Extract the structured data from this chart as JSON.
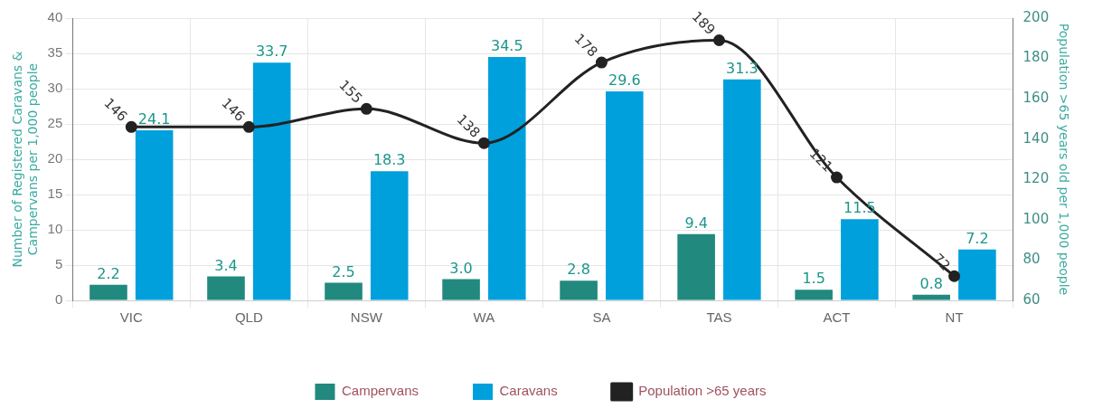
{
  "chart_data": {
    "type": "bar",
    "categories": [
      "VIC",
      "QLD",
      "NSW",
      "WA",
      "SA",
      "TAS",
      "ACT",
      "NT"
    ],
    "ylabel": "Number of Registered Caravans & Campervans per 1,000 people",
    "y2label": "Population >65 years old per 1,000 people",
    "series": [
      {
        "name": "Campervans",
        "color": "#21897e",
        "values": [
          2.2,
          3.4,
          2.5,
          3.0,
          2.8,
          9.4,
          1.5,
          0.8
        ],
        "value_labels": [
          "2.2",
          "3.4",
          "2.5",
          "3.0",
          "2.8",
          "9.4",
          "1.5",
          "0.8"
        ]
      },
      {
        "name": "Caravans",
        "color": "#00a0dc",
        "values": [
          24.1,
          33.7,
          18.3,
          34.5,
          29.6,
          31.3,
          11.5,
          7.2
        ]
      },
      {
        "name": "Population >65 years",
        "type": "line",
        "axis": "y2",
        "color": "#222222",
        "marker": "circle",
        "values": [
          146,
          146,
          155,
          138,
          178,
          189,
          121,
          72
        ]
      }
    ],
    "ylim": [
      0,
      40
    ],
    "yticks": [
      0,
      5,
      10,
      15,
      20,
      25,
      30,
      35,
      40
    ],
    "y2lim": [
      60,
      200
    ],
    "y2ticks": [
      60,
      80,
      100,
      120,
      140,
      160,
      180,
      200
    ],
    "grid": true,
    "legend": "bottom",
    "data_labels": true
  }
}
